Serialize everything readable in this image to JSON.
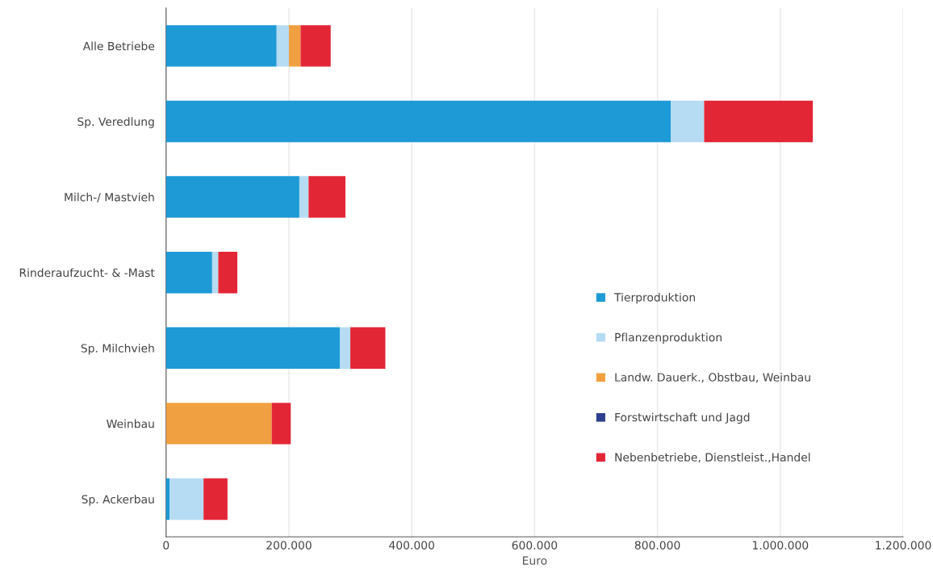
{
  "chart_data": {
    "type": "bar",
    "orientation": "horizontal",
    "stacked": true,
    "xlabel": "Euro",
    "categories": [
      "Alle Betriebe",
      "Sp. Veredlung",
      "Milch-/ Mastvieh",
      "Rinderaufzucht- & -Mast",
      "Sp. Milchvieh",
      "Weinbau",
      "Sp. Ackerbau"
    ],
    "series": [
      {
        "name": "Tierproduktion",
        "color": "#1e9ad6",
        "values": [
          180000,
          822000,
          217000,
          75000,
          283000,
          0,
          6000
        ]
      },
      {
        "name": "Pflanzenproduktion",
        "color": "#b5dcf2",
        "values": [
          20000,
          54000,
          15000,
          10000,
          17000,
          0,
          55000
        ]
      },
      {
        "name": "Landw. Dauerk., Obstbau, Weinbau",
        "color": "#f0a040",
        "values": [
          19000,
          0,
          0,
          0,
          0,
          172000,
          0
        ]
      },
      {
        "name": "Forstwirtschaft und Jagd",
        "color": "#2e3f8f",
        "values": [
          0,
          0,
          0,
          0,
          0,
          0,
          0
        ]
      },
      {
        "name": "Nebenbetriebe, Dienstleist.,Handel",
        "color": "#e32636",
        "values": [
          49000,
          177000,
          60000,
          31000,
          57000,
          31000,
          39000
        ]
      }
    ],
    "xlim": [
      0,
      1200000
    ],
    "xticks": [
      0,
      {
        "value": 200000,
        "label": "200.000"
      },
      {
        "value": 400000,
        "label": "400.000"
      },
      {
        "value": 600000,
        "label": "600.000"
      },
      {
        "value": 800000,
        "label": "800.000"
      },
      {
        "value": 1000000,
        "label": "1.000.000"
      },
      {
        "value": 1200000,
        "label": "1.200.000"
      }
    ],
    "grid": "x",
    "legend": "right"
  }
}
